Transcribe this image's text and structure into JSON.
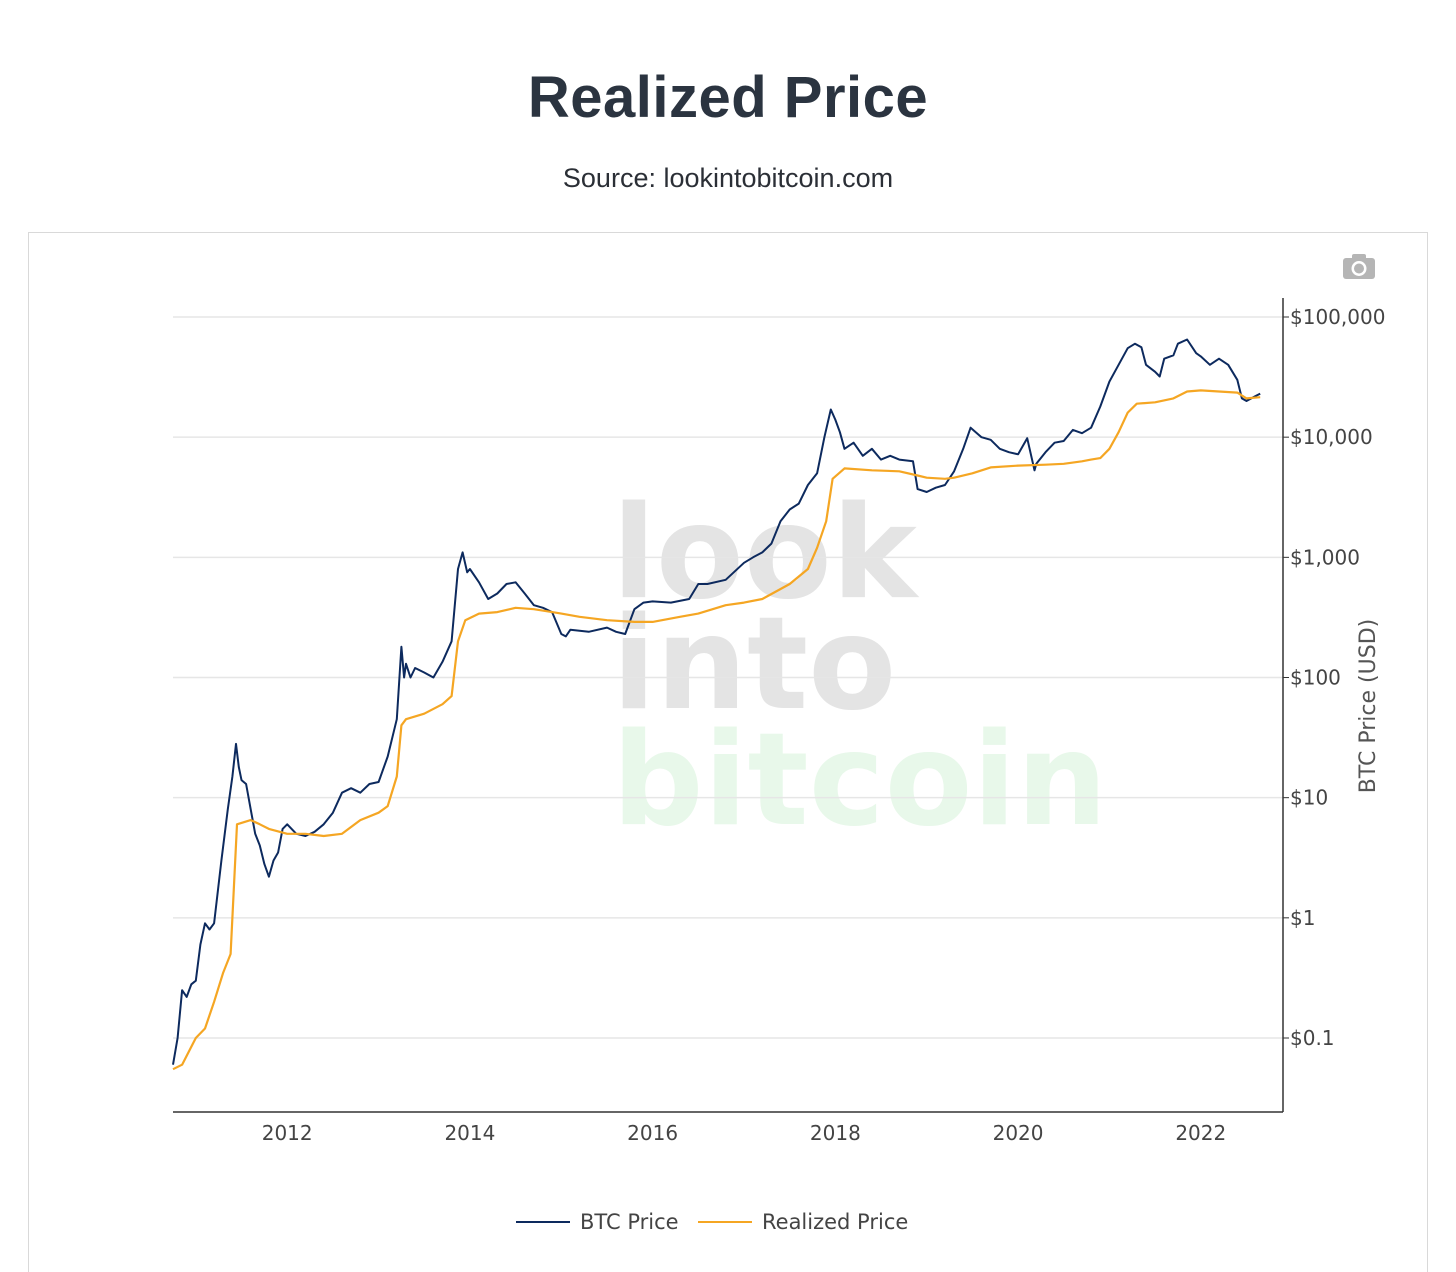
{
  "header": {
    "title": "Realized Price",
    "source": "Source: lookintobitcoin.com"
  },
  "toolbar": {
    "camera_icon": "camera-icon"
  },
  "watermark": {
    "line1": "look",
    "line2": "into",
    "line3": "bitcoin"
  },
  "colors": {
    "btc": "#0d2a5e",
    "realized": "#f5a623",
    "grid": "#e6e6e6",
    "axis": "#333333"
  },
  "chart_data": {
    "type": "line",
    "title": "",
    "xlabel": "",
    "ylabel": "BTC Price (USD)",
    "yscale": "log",
    "ylim": [
      0.03,
      150000
    ],
    "xlim": [
      2010.75,
      2022.9
    ],
    "xticks": [
      2012,
      2014,
      2016,
      2018,
      2020,
      2022
    ],
    "xtick_labels": [
      "2012",
      "2014",
      "2016",
      "2018",
      "2020",
      "2022"
    ],
    "yticks": [
      0.1,
      1,
      10,
      100,
      1000,
      10000,
      100000
    ],
    "ytick_labels": [
      "$0.1",
      "$1",
      "$10",
      "$100",
      "$1,000",
      "$10,000",
      "$100,000"
    ],
    "grid": true,
    "legend_position": "bottom-center",
    "series": [
      {
        "name": "BTC Price",
        "x": [
          2010.75,
          2010.8,
          2010.85,
          2010.9,
          2010.95,
          2011.0,
          2011.05,
          2011.1,
          2011.15,
          2011.2,
          2011.28,
          2011.35,
          2011.4,
          2011.44,
          2011.47,
          2011.5,
          2011.55,
          2011.6,
          2011.65,
          2011.7,
          2011.75,
          2011.8,
          2011.85,
          2011.9,
          2011.95,
          2012.0,
          2012.1,
          2012.2,
          2012.3,
          2012.4,
          2012.5,
          2012.6,
          2012.7,
          2012.8,
          2012.9,
          2013.0,
          2013.1,
          2013.2,
          2013.25,
          2013.28,
          2013.3,
          2013.35,
          2013.4,
          2013.5,
          2013.6,
          2013.7,
          2013.8,
          2013.87,
          2013.92,
          2013.97,
          2014.0,
          2014.1,
          2014.2,
          2014.3,
          2014.4,
          2014.5,
          2014.6,
          2014.7,
          2014.8,
          2014.9,
          2015.0,
          2015.05,
          2015.1,
          2015.3,
          2015.5,
          2015.6,
          2015.7,
          2015.8,
          2015.9,
          2016.0,
          2016.2,
          2016.4,
          2016.5,
          2016.6,
          2016.8,
          2017.0,
          2017.1,
          2017.2,
          2017.3,
          2017.4,
          2017.5,
          2017.6,
          2017.7,
          2017.8,
          2017.88,
          2017.95,
          2018.0,
          2018.05,
          2018.1,
          2018.2,
          2018.3,
          2018.4,
          2018.5,
          2018.6,
          2018.7,
          2018.85,
          2018.9,
          2019.0,
          2019.1,
          2019.2,
          2019.3,
          2019.4,
          2019.48,
          2019.6,
          2019.7,
          2019.8,
          2019.9,
          2020.0,
          2020.1,
          2020.18,
          2020.2,
          2020.3,
          2020.4,
          2020.5,
          2020.6,
          2020.7,
          2020.8,
          2020.9,
          2021.0,
          2021.1,
          2021.2,
          2021.28,
          2021.35,
          2021.4,
          2021.5,
          2021.55,
          2021.6,
          2021.7,
          2021.75,
          2021.85,
          2021.95,
          2022.0,
          2022.1,
          2022.2,
          2022.3,
          2022.4,
          2022.45,
          2022.5,
          2022.6,
          2022.65
        ],
        "values": [
          0.06,
          0.1,
          0.25,
          0.22,
          0.28,
          0.3,
          0.6,
          0.9,
          0.8,
          0.9,
          3.0,
          8.0,
          15.0,
          28.0,
          18.0,
          14.0,
          13.0,
          8.0,
          5.0,
          4.0,
          2.8,
          2.2,
          3.0,
          3.5,
          5.5,
          6.0,
          5.0,
          4.8,
          5.2,
          6.0,
          7.5,
          11.0,
          12.0,
          11.0,
          13.0,
          13.5,
          22.0,
          45.0,
          180.0,
          100.0,
          130.0,
          100.0,
          120.0,
          110.0,
          100.0,
          135.0,
          200.0,
          800.0,
          1100.0,
          750.0,
          800.0,
          620.0,
          450.0,
          500.0,
          600.0,
          620.0,
          500.0,
          400.0,
          380.0,
          350.0,
          230.0,
          220.0,
          250.0,
          240.0,
          260.0,
          240.0,
          230.0,
          370.0,
          420.0,
          430.0,
          420.0,
          450.0,
          600.0,
          600.0,
          650.0,
          900.0,
          1000.0,
          1100.0,
          1300.0,
          2000.0,
          2500.0,
          2800.0,
          4000.0,
          5000.0,
          10000.0,
          17000.0,
          14000.0,
          11000.0,
          8000.0,
          9000.0,
          7000.0,
          8000.0,
          6500.0,
          7000.0,
          6500.0,
          6300.0,
          3700.0,
          3500.0,
          3800.0,
          4000.0,
          5200.0,
          8000.0,
          12000.0,
          10000.0,
          9500.0,
          8000.0,
          7500.0,
          7200.0,
          9800.0,
          5300.0,
          6000.0,
          7500.0,
          9000.0,
          9300.0,
          11500.0,
          10800.0,
          12000.0,
          18000.0,
          29000.0,
          40000.0,
          55000.0,
          60000.0,
          56000.0,
          40000.0,
          35000.0,
          32000.0,
          45000.0,
          48000.0,
          60000.0,
          65000.0,
          50000.0,
          47000.0,
          40000.0,
          45000.0,
          40000.0,
          30000.0,
          21000.0,
          20000.0,
          22000.0,
          23000.0
        ]
      },
      {
        "name": "Realized Price",
        "x": [
          2010.75,
          2010.85,
          2011.0,
          2011.1,
          2011.2,
          2011.3,
          2011.38,
          2011.45,
          2011.6,
          2011.7,
          2011.8,
          2012.0,
          2012.2,
          2012.4,
          2012.6,
          2012.8,
          2013.0,
          2013.1,
          2013.2,
          2013.25,
          2013.3,
          2013.5,
          2013.7,
          2013.8,
          2013.87,
          2013.95,
          2014.1,
          2014.3,
          2014.5,
          2014.7,
          2014.9,
          2015.0,
          2015.2,
          2015.5,
          2015.8,
          2016.0,
          2016.3,
          2016.5,
          2016.8,
          2017.0,
          2017.2,
          2017.5,
          2017.7,
          2017.8,
          2017.9,
          2017.97,
          2018.1,
          2018.4,
          2018.7,
          2018.9,
          2019.0,
          2019.2,
          2019.3,
          2019.5,
          2019.7,
          2020.0,
          2020.3,
          2020.5,
          2020.7,
          2020.8,
          2020.9,
          2021.0,
          2021.1,
          2021.2,
          2021.3,
          2021.5,
          2021.7,
          2021.85,
          2022.0,
          2022.2,
          2022.4,
          2022.5,
          2022.65
        ],
        "values": [
          0.055,
          0.06,
          0.1,
          0.12,
          0.2,
          0.35,
          0.5,
          6.0,
          6.5,
          6.0,
          5.5,
          5.0,
          5.0,
          4.8,
          5.0,
          6.5,
          7.5,
          8.5,
          15.0,
          40.0,
          45.0,
          50.0,
          60.0,
          70.0,
          200.0,
          300.0,
          340.0,
          350.0,
          380.0,
          370.0,
          350.0,
          340.0,
          320.0,
          300.0,
          290.0,
          290.0,
          320.0,
          340.0,
          400.0,
          420.0,
          450.0,
          600.0,
          800.0,
          1200.0,
          2000.0,
          4500.0,
          5500.0,
          5300.0,
          5200.0,
          4800.0,
          4600.0,
          4500.0,
          4600.0,
          5000.0,
          5600.0,
          5800.0,
          5900.0,
          6000.0,
          6300.0,
          6500.0,
          6700.0,
          8000.0,
          11000.0,
          16000.0,
          19000.0,
          19500.0,
          21000.0,
          24000.0,
          24500.0,
          24000.0,
          23500.0,
          21000.0,
          21500.0
        ]
      }
    ]
  },
  "legend": {
    "btc_label": "BTC Price",
    "realized_label": "Realized Price"
  }
}
